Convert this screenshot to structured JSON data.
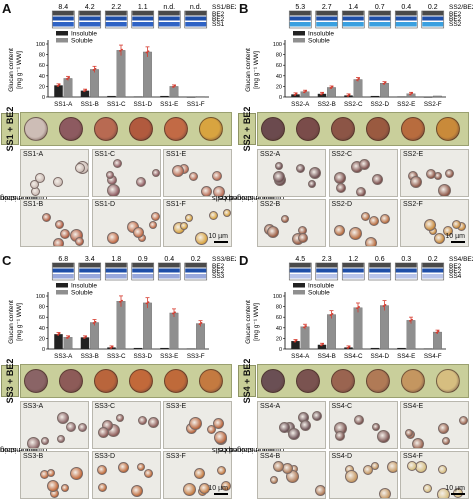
{
  "colors": {
    "insoluble": "#222222",
    "soluble": "#8f8f8f",
    "error": "#d63a2e",
    "strip_dark": "#4a4a4a",
    "strip_be2": "#1f4fa8",
    "strip_ss1": "#2f63c5",
    "strip_ss2": "#3aa0e0",
    "strip_ss3": "#98a8dc",
    "strip_ss4": "#b8c4ea"
  },
  "legend": {
    "insoluble": "Insoluble",
    "soluble": "Soluble"
  },
  "ylabel_line1": "Glucan content",
  "ylabel_line2": "[mg g⁻¹ WW]",
  "micro_label_line1": "Light micrographs",
  "micro_label_line2": "of iodine-stained cells",
  "scale": "10 µm",
  "panels": [
    {
      "letter": "A",
      "side_label": "SS1 + BE2",
      "ratio_label": "SS1/BE2",
      "ratios": [
        "8.4",
        "4.2",
        "2.2",
        "1.1",
        "n.d.",
        "n.d."
      ],
      "strip_rows": [
        "BE2",
        "BE2",
        "SS1"
      ],
      "strip_ss_key": "strip_ss1",
      "chart_data": {
        "type": "bar",
        "categories": [
          "SS1-A",
          "SS1-B",
          "SS1-C",
          "SS1-D",
          "SS1-E",
          "SS1-F"
        ],
        "ylim": [
          0,
          100
        ],
        "yticks": [
          0,
          20,
          40,
          60,
          80,
          100
        ],
        "series": [
          {
            "name": "Insoluble",
            "values": [
              22,
              12,
              2,
              1,
              2,
              0
            ]
          },
          {
            "name": "Soluble",
            "values": [
              35,
              52,
              88,
              85,
              20,
              1
            ]
          }
        ]
      },
      "plates": [
        "#cdbdb6",
        "#8d5a60",
        "#b86a52",
        "#b15a3e",
        "#c26a45",
        "#d8a440"
      ],
      "micro": [
        "SS1-A",
        "SS1-C",
        "SS1-E",
        "SS1-B",
        "SS1-D",
        "SS1-F"
      ]
    },
    {
      "letter": "B",
      "side_label": "SS2 + BE2",
      "ratio_label": "SS2/BE2",
      "ratios": [
        "5.3",
        "2.7",
        "1.4",
        "0.7",
        "0.4",
        "0.2"
      ],
      "strip_rows": [
        "BE2",
        "BE2",
        "SS2"
      ],
      "strip_ss_key": "strip_ss2",
      "chart_data": {
        "type": "bar",
        "categories": [
          "SS2-A",
          "SS2-B",
          "SS2-C",
          "SS2-D",
          "SS2-E",
          "SS2-F"
        ],
        "ylim": [
          0,
          100
        ],
        "yticks": [
          0,
          20,
          40,
          60,
          80,
          100
        ],
        "series": [
          {
            "name": "Insoluble",
            "values": [
              5,
              6,
              3,
              2,
              1,
              0
            ]
          },
          {
            "name": "Soluble",
            "values": [
              10,
              18,
              33,
              26,
              6,
              2
            ]
          }
        ]
      },
      "plates": [
        "#6b4a4e",
        "#7a4c4a",
        "#8c5546",
        "#9a5a40",
        "#b86c3e",
        "#c98a3a"
      ],
      "micro": [
        "SS2-A",
        "SS2-C",
        "SS2-E",
        "SS2-B",
        "SS2-D",
        "SS2-F"
      ]
    },
    {
      "letter": "C",
      "side_label": "SS3 + BE2",
      "ratio_label": "SS3/BE2",
      "ratios": [
        "6.8",
        "3.4",
        "1.8",
        "0.9",
        "0.4",
        "0.2"
      ],
      "strip_rows": [
        "BE2",
        "BE2",
        "SS3"
      ],
      "strip_ss_key": "strip_ss3",
      "chart_data": {
        "type": "bar",
        "categories": [
          "SS3-A",
          "SS3-B",
          "SS3-C",
          "SS3-D",
          "SS3-E",
          "SS3-F"
        ],
        "ylim": [
          0,
          100
        ],
        "yticks": [
          0,
          20,
          40,
          60,
          80,
          100
        ],
        "series": [
          {
            "name": "Insoluble",
            "values": [
              28,
              22,
              3,
              2,
              2,
              1
            ]
          },
          {
            "name": "Soluble",
            "values": [
              22,
              50,
              90,
              87,
              68,
              48
            ]
          }
        ]
      },
      "plates": [
        "#8a6466",
        "#8d5b58",
        "#b9653c",
        "#c2693a",
        "#bf6a3a",
        "#c47a40"
      ],
      "micro": [
        "SS3-A",
        "SS3-C",
        "SS3-E",
        "SS3-B",
        "SS3-D",
        "SS3-F"
      ]
    },
    {
      "letter": "D",
      "side_label": "SS4 + BE2",
      "ratio_label": "SS4/BE2",
      "ratios": [
        "4.5",
        "2.3",
        "1.2",
        "0.6",
        "0.3",
        "0.2"
      ],
      "strip_rows": [
        "BE2",
        "BE2",
        "SS4"
      ],
      "strip_ss_key": "strip_ss4",
      "chart_data": {
        "type": "bar",
        "categories": [
          "SS4-A",
          "SS4-B",
          "SS4-C",
          "SS4-D",
          "SS4-E",
          "SS4-F"
        ],
        "ylim": [
          0,
          100
        ],
        "yticks": [
          0,
          20,
          40,
          60,
          80,
          100
        ],
        "series": [
          {
            "name": "Insoluble",
            "values": [
              15,
              8,
              3,
              2,
              2,
              1
            ]
          },
          {
            "name": "Soluble",
            "values": [
              42,
              65,
              78,
              82,
              54,
              32
            ]
          }
        ]
      },
      "plates": [
        "#6a4f54",
        "#7a5350",
        "#9a6450",
        "#b07a56",
        "#c49660",
        "#d6be80"
      ],
      "micro": [
        "SS4-A",
        "SS4-C",
        "SS4-E",
        "SS4-B",
        "SS4-D",
        "SS4-F"
      ]
    }
  ]
}
